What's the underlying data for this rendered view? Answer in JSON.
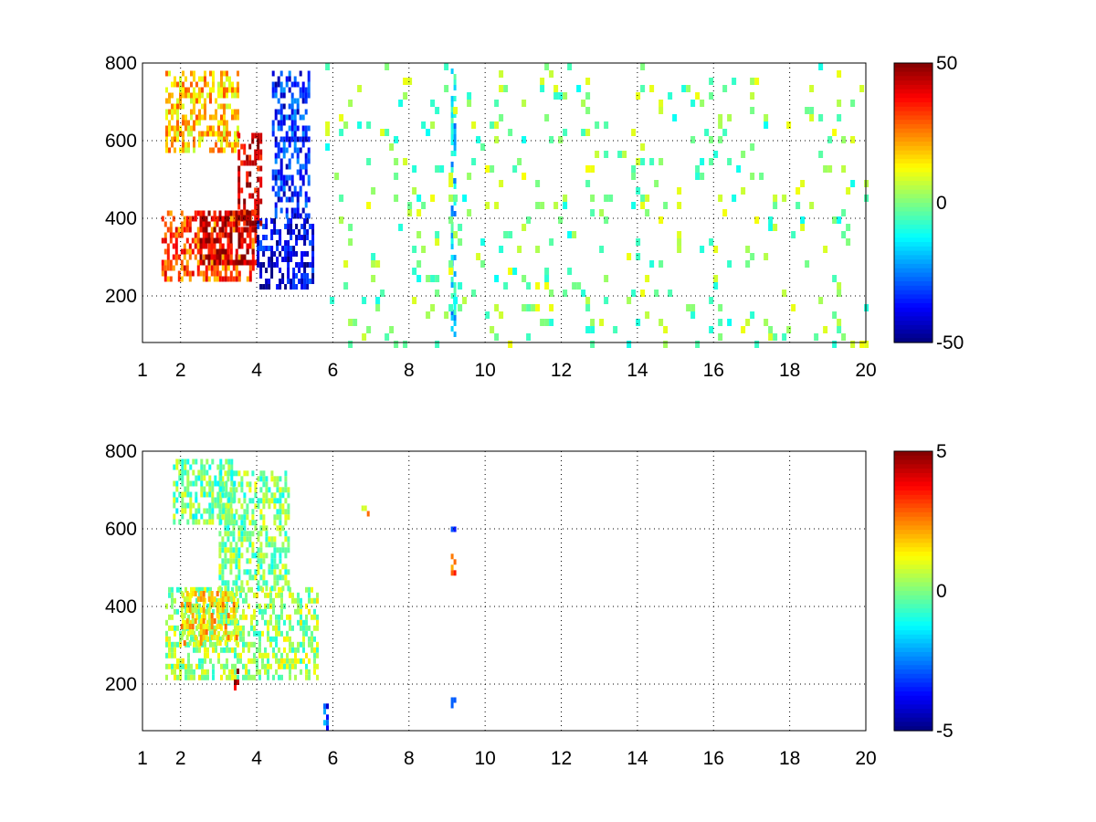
{
  "chart_data": [
    {
      "type": "heatmap",
      "title": "",
      "xlabel": "",
      "ylabel": "",
      "xlim": [
        1,
        20
      ],
      "ylim": [
        80,
        800
      ],
      "x_ticks": [
        1,
        2,
        4,
        6,
        8,
        10,
        12,
        14,
        16,
        18,
        20
      ],
      "x_tick_labels": [
        "1",
        "2",
        "4",
        "6",
        "8",
        "10",
        "12",
        "14",
        "16",
        "18",
        "20"
      ],
      "y_ticks": [
        200,
        400,
        600,
        800
      ],
      "y_tick_labels": [
        "200",
        "400",
        "600",
        "800"
      ],
      "grid": true,
      "colormap": "jet",
      "colorbar": {
        "clim": [
          -50,
          50
        ],
        "ticks": [
          50,
          0,
          -50
        ],
        "tick_labels": [
          "50",
          "0",
          "-50"
        ]
      },
      "features": [
        {
          "x": [
            1.5,
            4.0
          ],
          "y": [
            240,
            420
          ],
          "value": 30
        },
        {
          "x": [
            2.5,
            4.0
          ],
          "y": [
            290,
            420
          ],
          "value": 45
        },
        {
          "x": [
            1.6,
            3.5
          ],
          "y": [
            580,
            780
          ],
          "value": 18
        },
        {
          "x": [
            4.0,
            5.5
          ],
          "y": [
            230,
            400
          ],
          "value": -40
        },
        {
          "x": [
            4.4,
            5.4
          ],
          "y": [
            400,
            780
          ],
          "value": -35
        },
        {
          "x": [
            3.5,
            4.1
          ],
          "y": [
            380,
            620
          ],
          "value": 42
        },
        {
          "x": [
            9.1,
            9.2
          ],
          "y": [
            80,
            800
          ],
          "value": -15
        }
      ],
      "scatter_noise": {
        "x": [
          5.8,
          20.0
        ],
        "y": [
          80,
          800
        ],
        "values": [
          -12,
          12
        ],
        "density": 0.08
      }
    },
    {
      "type": "heatmap",
      "title": "",
      "xlabel": "",
      "ylabel": "",
      "xlim": [
        1,
        20
      ],
      "ylim": [
        80,
        800
      ],
      "x_ticks": [
        1,
        2,
        4,
        6,
        8,
        10,
        12,
        14,
        16,
        18,
        20
      ],
      "x_tick_labels": [
        "1",
        "2",
        "4",
        "6",
        "8",
        "10",
        "12",
        "14",
        "16",
        "18",
        "20"
      ],
      "y_ticks": [
        200,
        400,
        600,
        800
      ],
      "y_tick_labels": [
        "200",
        "400",
        "600",
        "800"
      ],
      "grid": true,
      "colormap": "jet",
      "colorbar": {
        "clim": [
          -5,
          5
        ],
        "ticks": [
          5,
          0,
          -5
        ],
        "tick_labels": [
          "5",
          "0",
          "-5"
        ]
      },
      "features": [
        {
          "x": [
            1.6,
            5.6
          ],
          "y": [
            220,
            450
          ],
          "value": 0.3
        },
        {
          "x": [
            2.0,
            3.5
          ],
          "y": [
            300,
            440
          ],
          "value": 1.5
        },
        {
          "x": [
            3.0,
            4.8
          ],
          "y": [
            450,
            750
          ],
          "value": 0
        },
        {
          "x": [
            1.8,
            3.4
          ],
          "y": [
            620,
            780
          ],
          "value": -0.2
        },
        {
          "x": [
            9.1,
            9.2
          ],
          "y": [
            490,
            550
          ],
          "value": 2.5
        },
        {
          "x": [
            9.1,
            9.2
          ],
          "y": [
            130,
            180
          ],
          "value": -3.5
        },
        {
          "x": [
            9.1,
            9.2
          ],
          "y": [
            605,
            620
          ],
          "value": -3.5
        },
        {
          "x": [
            5.75,
            5.85
          ],
          "y": [
            80,
            150
          ],
          "value": -3
        },
        {
          "x": [
            6.75,
            6.9
          ],
          "y": [
            645,
            660
          ],
          "value": 2
        },
        {
          "x": [
            3.4,
            3.5
          ],
          "y": [
            190,
            240
          ],
          "value": 4.5
        }
      ]
    }
  ]
}
